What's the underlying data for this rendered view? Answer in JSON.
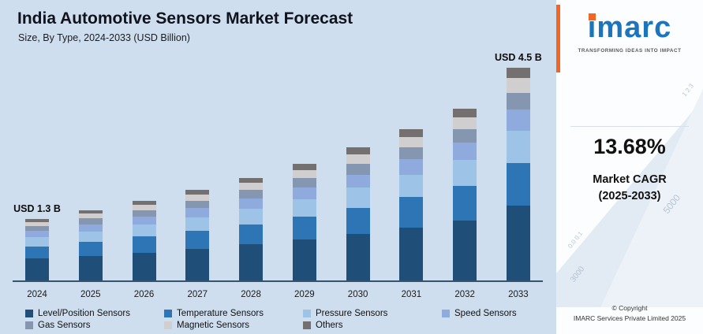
{
  "header": {
    "title": "India Automotive Sensors Market Forecast",
    "subtitle": "Size, By Type, 2024-2033 (USD Billion)"
  },
  "chart_data": {
    "type": "bar",
    "stacked": true,
    "unit": "USD Billion",
    "categories": [
      "2024",
      "2025",
      "2026",
      "2027",
      "2028",
      "2029",
      "2030",
      "2031",
      "2032",
      "2033"
    ],
    "series": [
      {
        "name": "Level/Position Sensors",
        "color": "#1f4e79",
        "values": [
          0.46,
          0.52,
          0.59,
          0.67,
          0.76,
          0.86,
          0.98,
          1.12,
          1.27,
          1.58
        ]
      },
      {
        "name": "Temperature Sensors",
        "color": "#2e75b6",
        "values": [
          0.26,
          0.3,
          0.34,
          0.38,
          0.43,
          0.49,
          0.56,
          0.64,
          0.73,
          0.9
        ]
      },
      {
        "name": "Pressure Sensors",
        "color": "#9dc3e6",
        "values": [
          0.2,
          0.22,
          0.25,
          0.29,
          0.33,
          0.37,
          0.42,
          0.48,
          0.55,
          0.68
        ]
      },
      {
        "name": "Speed Sensors",
        "color": "#8faadc",
        "values": [
          0.13,
          0.15,
          0.17,
          0.19,
          0.22,
          0.25,
          0.28,
          0.32,
          0.36,
          0.45
        ]
      },
      {
        "name": "Gas Sensors",
        "color": "#8496b0",
        "values": [
          0.1,
          0.12,
          0.13,
          0.15,
          0.17,
          0.2,
          0.23,
          0.26,
          0.29,
          0.36
        ]
      },
      {
        "name": "Magnetic Sensors",
        "color": "#d0cece",
        "values": [
          0.09,
          0.1,
          0.12,
          0.13,
          0.15,
          0.17,
          0.2,
          0.22,
          0.25,
          0.32
        ]
      },
      {
        "name": "Others",
        "color": "#757070",
        "values": [
          0.06,
          0.07,
          0.08,
          0.1,
          0.11,
          0.12,
          0.14,
          0.16,
          0.18,
          0.21
        ]
      }
    ],
    "annotations": [
      {
        "category": "2024",
        "text": "USD 1.3 B"
      },
      {
        "category": "2033",
        "text": "USD 4.5 B"
      }
    ],
    "ylim": [
      0,
      4.8
    ],
    "grid": false,
    "legend_position": "bottom",
    "legend_rows": [
      4,
      3
    ]
  },
  "sidebar": {
    "logo_text": "imarc",
    "tagline": "TRANSFORMING IDEAS INTO IMPACT",
    "cagr_value": "13.68%",
    "cagr_label": "Market CAGR",
    "cagr_period": "(2025-2033)",
    "copyright_line1": "© Copyright",
    "copyright_line2": "IMARC Services Private Limited 2025",
    "accent_color": "#f26522",
    "logo_color": "#1b75bc"
  },
  "decor": {
    "n1": "5000",
    "n2": "3000",
    "n3": "1 2 3",
    "n4": "0.0 0.1"
  }
}
